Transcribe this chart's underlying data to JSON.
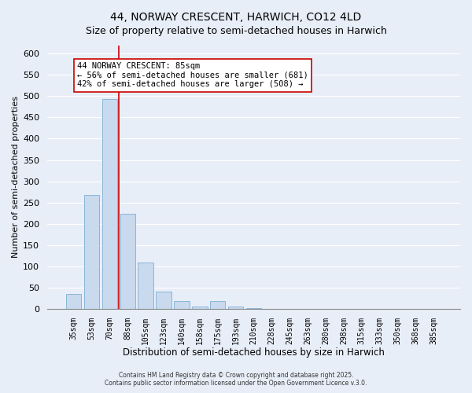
{
  "title": "44, NORWAY CRESCENT, HARWICH, CO12 4LD",
  "subtitle": "Size of property relative to semi-detached houses in Harwich",
  "xlabel": "Distribution of semi-detached houses by size in Harwich",
  "ylabel": "Number of semi-detached properties",
  "bar_labels": [
    "35sqm",
    "53sqm",
    "70sqm",
    "88sqm",
    "105sqm",
    "123sqm",
    "140sqm",
    "158sqm",
    "175sqm",
    "193sqm",
    "210sqm",
    "228sqm",
    "245sqm",
    "263sqm",
    "280sqm",
    "298sqm",
    "315sqm",
    "333sqm",
    "350sqm",
    "368sqm",
    "385sqm"
  ],
  "bar_values": [
    35,
    268,
    493,
    224,
    109,
    40,
    18,
    5,
    18,
    5,
    1,
    0,
    0,
    0,
    0,
    0,
    0,
    0,
    0,
    0,
    0
  ],
  "bar_color": "#c9d9ee",
  "bar_edge_color": "#7bafd4",
  "vline_color": "#cc0000",
  "annotation_title": "44 NORWAY CRESCENT: 85sqm",
  "annotation_line1": "← 56% of semi-detached houses are smaller (681)",
  "annotation_line2": "42% of semi-detached houses are larger (508) →",
  "annotation_box_color": "#ffffff",
  "annotation_box_edge": "#cc0000",
  "ylim": [
    0,
    620
  ],
  "yticks": [
    0,
    50,
    100,
    150,
    200,
    250,
    300,
    350,
    400,
    450,
    500,
    550,
    600
  ],
  "footer_line1": "Contains HM Land Registry data © Crown copyright and database right 2025.",
  "footer_line2": "Contains public sector information licensed under the Open Government Licence v.3.0.",
  "background_color": "#e8eef8",
  "plot_background": "#e8eef8",
  "grid_color": "#ffffff",
  "title_fontsize": 10,
  "subtitle_fontsize": 9
}
